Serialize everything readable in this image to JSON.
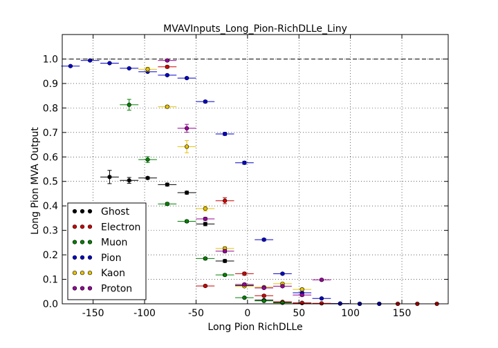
{
  "chart_data": {
    "type": "scatter",
    "title": "MVAVInputs_Long_Pion-RichDLLe_Liny",
    "xlabel": "Long Pion RichDLLe",
    "ylabel": "Long Pion MVA Output",
    "xlim": [
      -180,
      195
    ],
    "ylim": [
      0.0,
      1.1
    ],
    "x_ticks": [
      -150,
      -100,
      -50,
      0,
      50,
      100,
      150
    ],
    "y_ticks": [
      0.0,
      0.1,
      0.2,
      0.3,
      0.4,
      0.5,
      0.6,
      0.7,
      0.8,
      0.9,
      1.0
    ],
    "reference_line": 1.0,
    "grid": true,
    "legend_position": "lower-left",
    "x_halfwidth": 9,
    "series": [
      {
        "name": "Ghost",
        "color": "#000000",
        "points": [
          [
            -134,
            0.518,
            0.027
          ],
          [
            -115,
            0.504,
            0.012
          ],
          [
            -97,
            0.514,
            0.005
          ],
          [
            -78,
            0.487,
            0.006
          ],
          [
            -59,
            0.454,
            0.006
          ],
          [
            -41,
            0.326,
            0.007
          ],
          [
            -22,
            0.175,
            0.006
          ],
          [
            -3,
            0.075,
            0.005
          ],
          [
            16,
            0.015,
            0.003
          ],
          [
            34,
            0.006,
            0.002
          ],
          [
            53,
            0.003,
            0.001
          ]
        ]
      },
      {
        "name": "Electron",
        "color": "#cc0000",
        "points": [
          [
            -78,
            0.968,
            0.005
          ],
          [
            -22,
            0.421,
            0.012
          ],
          [
            -41,
            0.073,
            0.004
          ],
          [
            -3,
            0.123,
            0.006
          ],
          [
            16,
            0.033,
            0.004
          ],
          [
            34,
            0.008,
            0.002
          ],
          [
            53,
            0.004,
            0.001
          ],
          [
            72,
            0.002,
            0.001
          ],
          [
            90,
            0.001,
            0.0
          ],
          [
            109,
            0.0,
            0.0
          ],
          [
            128,
            0.0,
            0.0
          ],
          [
            146,
            0.0,
            0.0
          ],
          [
            165,
            0.0,
            0.0
          ],
          [
            184,
            0.0,
            0.0
          ]
        ]
      },
      {
        "name": "Muon",
        "color": "#008000",
        "points": [
          [
            -115,
            0.813,
            0.022
          ],
          [
            -97,
            0.589,
            0.012
          ],
          [
            -78,
            0.408,
            0.006
          ],
          [
            -59,
            0.337,
            0.005
          ],
          [
            -41,
            0.185,
            0.005
          ],
          [
            -22,
            0.118,
            0.004
          ],
          [
            -3,
            0.025,
            0.003
          ],
          [
            16,
            0.012,
            0.002
          ],
          [
            34,
            0.004,
            0.001
          ]
        ]
      },
      {
        "name": "Pion",
        "color": "#0000cc",
        "points": [
          [
            -172,
            0.971,
            0.003
          ],
          [
            -153,
            0.994,
            0.002
          ],
          [
            -134,
            0.983,
            0.002
          ],
          [
            -115,
            0.962,
            0.002
          ],
          [
            -97,
            0.948,
            0.002
          ],
          [
            -78,
            0.934,
            0.003
          ],
          [
            -59,
            0.922,
            0.003
          ],
          [
            -41,
            0.826,
            0.005
          ],
          [
            -22,
            0.694,
            0.006
          ],
          [
            -3,
            0.576,
            0.006
          ],
          [
            16,
            0.262,
            0.005
          ],
          [
            34,
            0.123,
            0.004
          ],
          [
            53,
            0.045,
            0.003
          ],
          [
            72,
            0.022,
            0.002
          ],
          [
            90,
            0.001,
            0.0
          ],
          [
            109,
            0.0,
            0.0
          ],
          [
            128,
            0.0,
            0.0
          ]
        ]
      },
      {
        "name": "Kaon",
        "color": "#e6c200",
        "points": [
          [
            -97,
            0.958,
            0.008
          ],
          [
            -78,
            0.805,
            0.006
          ],
          [
            -59,
            0.642,
            0.025
          ],
          [
            -41,
            0.389,
            0.01
          ],
          [
            -22,
            0.226,
            0.007
          ],
          [
            -3,
            0.072,
            0.004
          ],
          [
            16,
            0.068,
            0.004
          ],
          [
            34,
            0.082,
            0.004
          ],
          [
            53,
            0.059,
            0.004
          ]
        ]
      },
      {
        "name": "Proton",
        "color": "#990099",
        "points": [
          [
            -78,
            0.994,
            0.004
          ],
          [
            -59,
            0.717,
            0.016
          ],
          [
            -41,
            0.347,
            0.006
          ],
          [
            -22,
            0.215,
            0.006
          ],
          [
            -3,
            0.079,
            0.005
          ],
          [
            16,
            0.065,
            0.004
          ],
          [
            34,
            0.072,
            0.004
          ],
          [
            53,
            0.036,
            0.005
          ],
          [
            72,
            0.098,
            0.004
          ]
        ]
      }
    ]
  }
}
